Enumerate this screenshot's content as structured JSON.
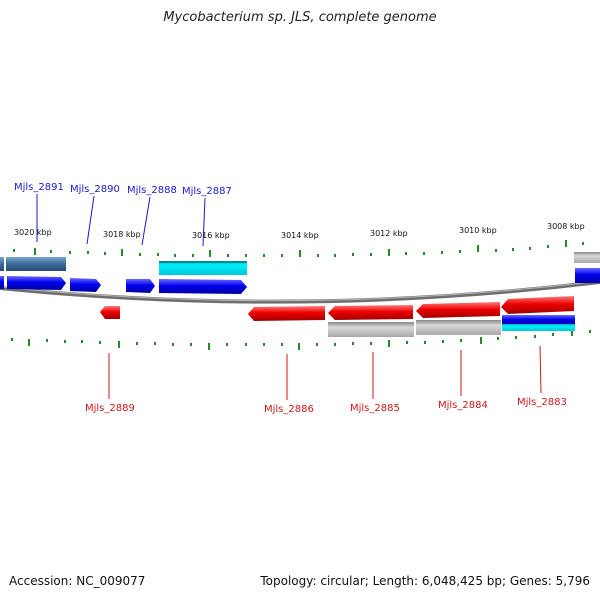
{
  "title": "Mycobacterium sp. JLS, complete genome",
  "footer": {
    "accession": "Accession: NC_009077",
    "summary": "Topology: circular; Length: 6,048,425 bp; Genes: 5,796"
  },
  "scale_labels": [
    "3020 kbp",
    "3018 kbp",
    "3016 kbp",
    "3014 kbp",
    "3012 kbp",
    "3010 kbp",
    "3008 kbp"
  ],
  "genes_top": [
    "Mjls_2891",
    "Mjls_2890",
    "Mjls_2888",
    "Mjls_2887"
  ],
  "genes_bottom": [
    "Mjls_2889",
    "Mjls_2886",
    "Mjls_2885",
    "Mjls_2884",
    "Mjls_2883"
  ],
  "colors": {
    "forward": "#0000ee",
    "reverse": "#ee0000",
    "cyan": "#00e0ee",
    "steel": "#4a7aa8",
    "gray": "#b0b0b0",
    "tick": "#2a8a2a",
    "top_label": "#1a1acc",
    "bottom_label": "#cc1a1a"
  }
}
